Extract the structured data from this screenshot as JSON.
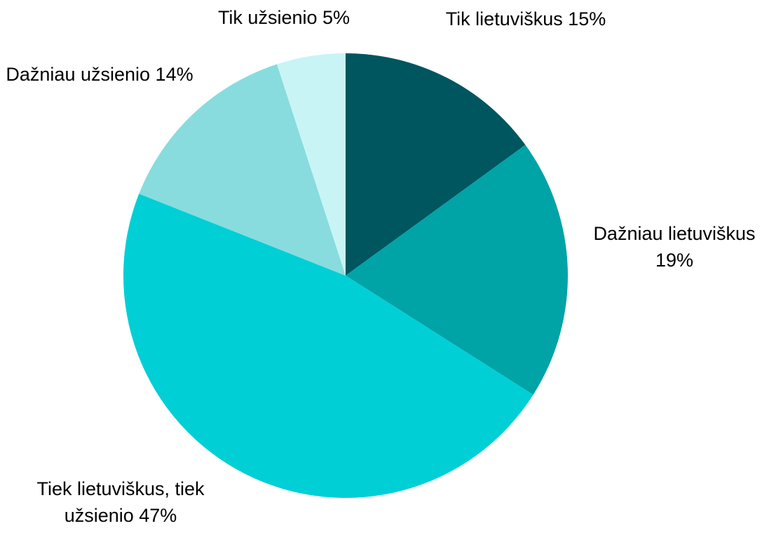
{
  "chart_data": {
    "type": "pie",
    "categories": [
      "Tik lietuviškus",
      "Dažniau lietuviškus",
      "Tiek lietuviškus, tiek užsienio",
      "Dažniau užsienio",
      "Tik užsienio"
    ],
    "values": [
      15,
      19,
      47,
      14,
      5
    ],
    "value_labels": [
      "15%",
      "19%",
      "47%",
      "14%",
      "5%"
    ],
    "colors": [
      "#00565e",
      "#00a3a6",
      "#00cfd6",
      "#88dcdd",
      "#c8f4f5"
    ]
  }
}
